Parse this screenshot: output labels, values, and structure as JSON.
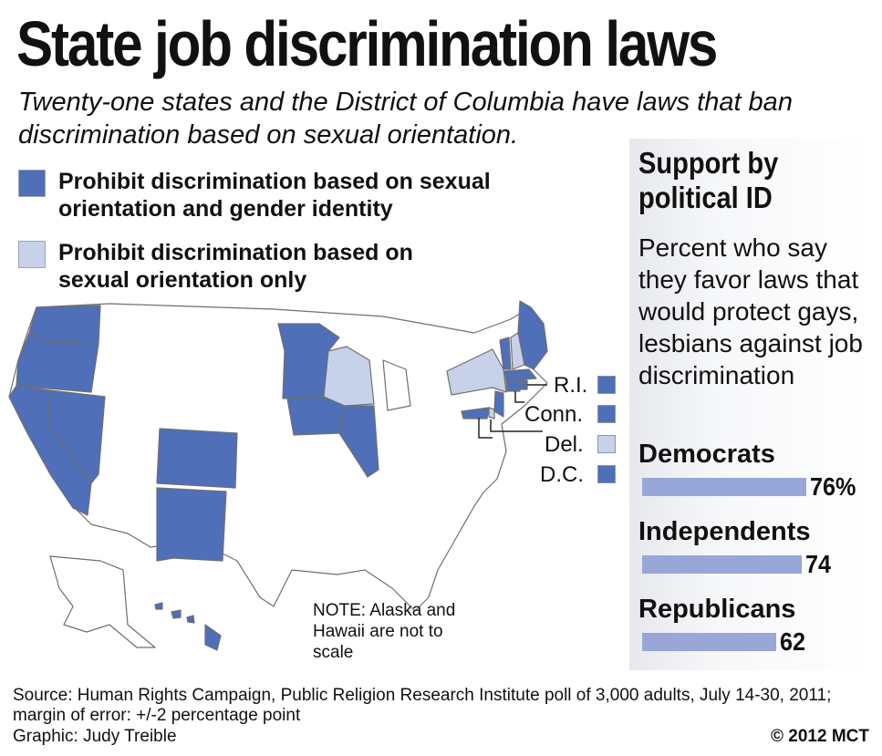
{
  "title": "State job discrimination laws",
  "subtitle": "Twenty-one states and the District of Columbia have laws that ban discrimination based on sexual orientation.",
  "colors": {
    "dark": "#4f6fb8",
    "light": "#c7d2ea",
    "none": "#ffffff",
    "bar": "#98a6d8"
  },
  "legend": [
    {
      "label": "Prohibit discrimination based on sexual orientation and gender identity",
      "color_key": "dark"
    },
    {
      "label": "Prohibit discrimination based on sexual orientation only",
      "color_key": "light"
    }
  ],
  "northeast_labels": [
    {
      "label": "R.I.",
      "color_key": "dark"
    },
    {
      "label": "Conn.",
      "color_key": "dark"
    },
    {
      "label": "Del.",
      "color_key": "light"
    },
    {
      "label": "D.C.",
      "color_key": "dark"
    }
  ],
  "note": "NOTE: Alaska and Hawaii are not to scale",
  "sidebar": {
    "title": "Support by political ID",
    "description": "Percent who say they favor laws that would protect gays, lesbians against job discrimination"
  },
  "chart_data": {
    "type": "bar",
    "categories": [
      "Democrats",
      "Independents",
      "Republicans"
    ],
    "values": [
      76,
      74,
      62
    ],
    "value_labels": [
      "76%",
      "74",
      "62"
    ],
    "title": "Support by political ID",
    "xlabel": "",
    "ylabel": "",
    "ylim": [
      0,
      76
    ]
  },
  "source": "Source: Human Rights Campaign, Public Religion Research Institute poll of 3,000 adults, July 14-30, 2011; margin of error: +/-2 percentage point",
  "credit": "Graphic: Judy Treible",
  "copyright": "© 2012 MCT"
}
